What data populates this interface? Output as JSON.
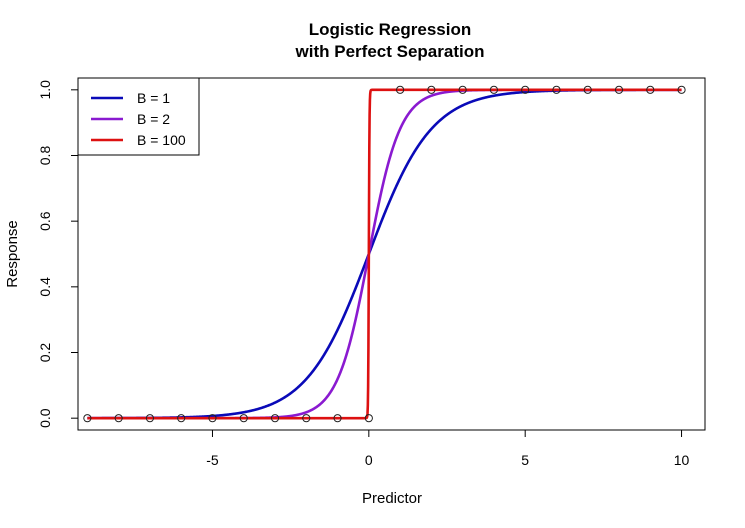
{
  "chart_data": {
    "type": "line",
    "title": "Logistic Regression",
    "subtitle": "with Perfect Separation",
    "xlabel": "Predictor",
    "ylabel": "Response",
    "xlim": [
      -9.3,
      10.75
    ],
    "ylim": [
      -0.036,
      1.036
    ],
    "x_ticks": [
      -5,
      0,
      5,
      10
    ],
    "x_tick_labels": [
      "-5",
      "0",
      "5",
      "10"
    ],
    "y_ticks": [
      0,
      0.2,
      0.4,
      0.6,
      0.8,
      1
    ],
    "y_tick_labels": [
      "0.0",
      "0.2",
      "0.4",
      "0.6",
      "0.8",
      "1.0"
    ],
    "grid": false,
    "legend_position": "top-left",
    "series": [
      {
        "name": "B = 1",
        "B": 1,
        "color": "#0a0ab8",
        "x_range": [
          -9,
          10
        ]
      },
      {
        "name": "B = 2",
        "B": 2,
        "color": "#8a1ad0",
        "x_range": [
          -9,
          10
        ]
      },
      {
        "name": "B = 100",
        "B": 100,
        "color": "#dd1111",
        "x_range": [
          -9,
          10
        ]
      }
    ],
    "points": {
      "x": [
        -9,
        -8,
        -7,
        -6,
        -5,
        -4,
        -3,
        -2,
        -1,
        0,
        1,
        2,
        3,
        4,
        5,
        6,
        7,
        8,
        9,
        10
      ],
      "y": [
        0,
        0,
        0,
        0,
        0,
        0,
        0,
        0,
        0,
        0,
        1,
        1,
        1,
        1,
        1,
        1,
        1,
        1,
        1,
        1
      ]
    }
  }
}
